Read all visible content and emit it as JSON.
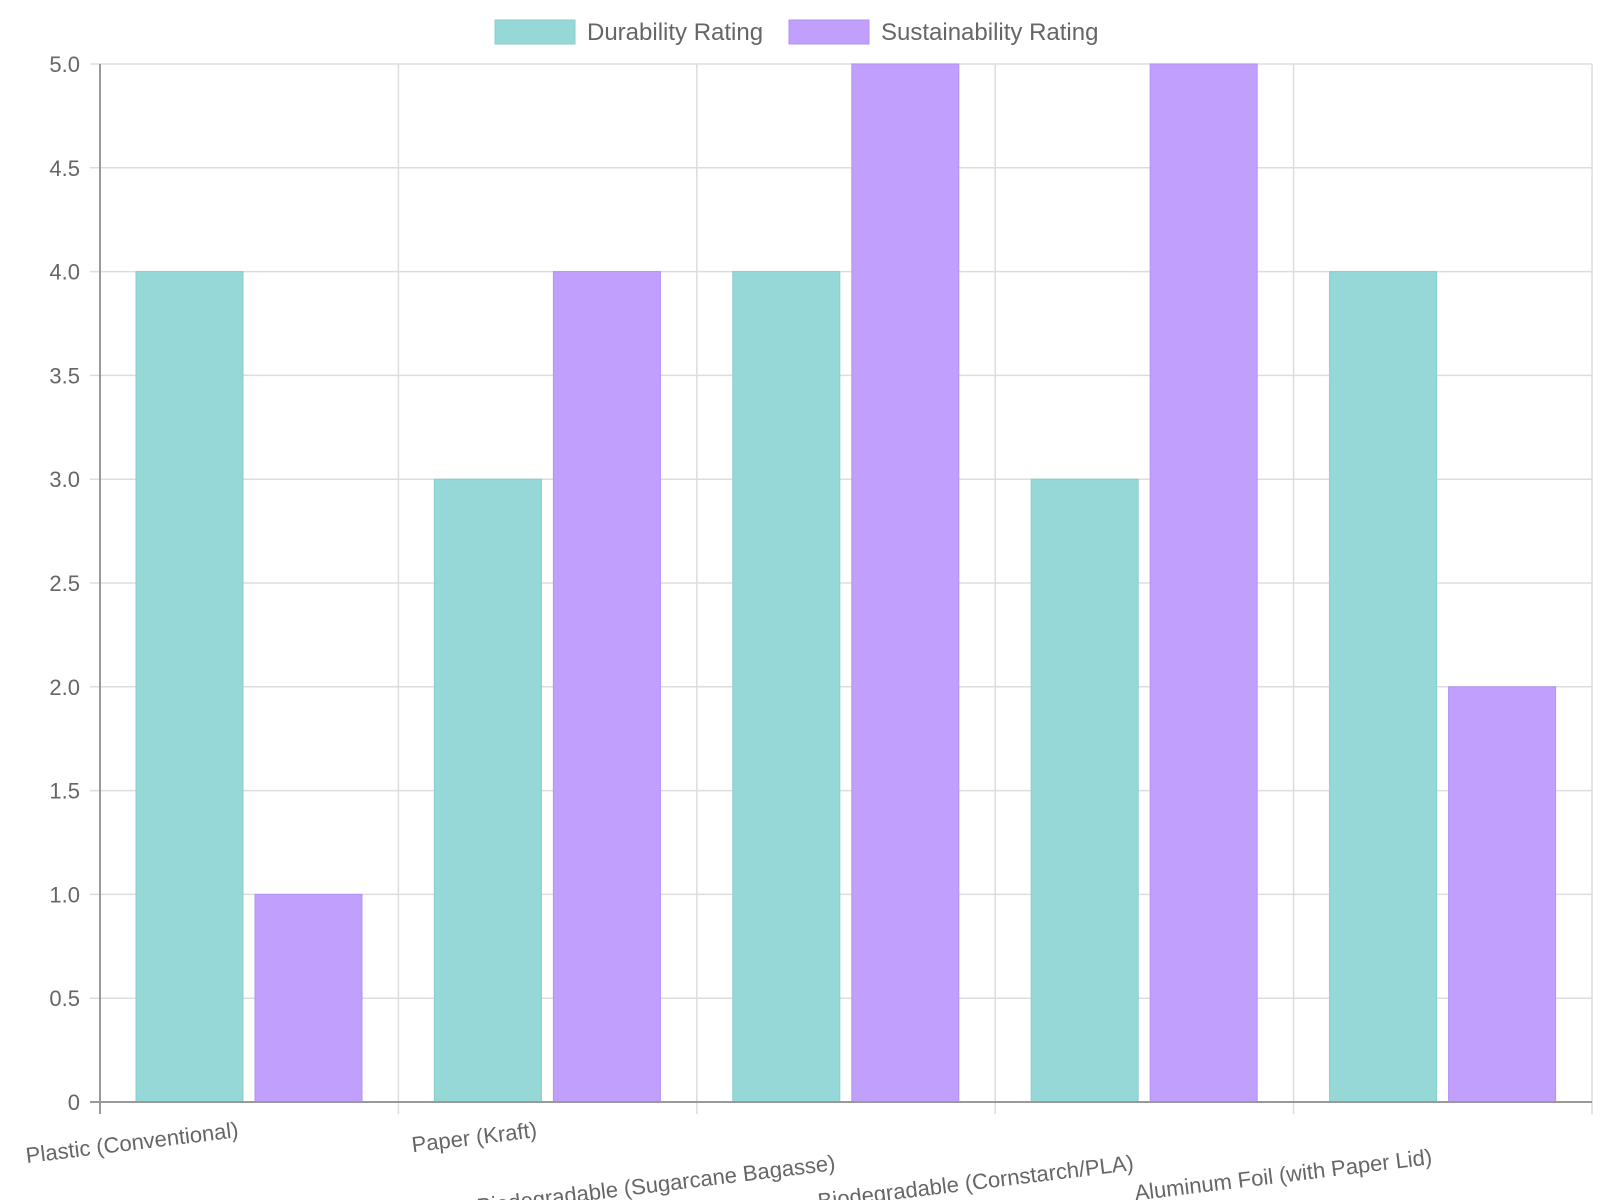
{
  "chart_data": {
    "type": "bar",
    "title": "",
    "xlabel": "",
    "ylabel": "",
    "categories": [
      "Plastic (Conventional)",
      "Paper (Kraft)",
      "Biodegradable (Sugarcane Bagasse)",
      "Biodegradable (Cornstarch/PLA)",
      "Aluminum Foil (with Paper Lid)"
    ],
    "series": [
      {
        "name": "Durability Rating",
        "values": [
          4,
          3,
          4,
          3,
          4
        ],
        "color": "#96d8d8",
        "border": "#88cccc"
      },
      {
        "name": "Sustainability Rating",
        "values": [
          1,
          4,
          5,
          5,
          2
        ],
        "color": "#c0a0fc",
        "border": "#b390f5"
      }
    ],
    "ylim": [
      0,
      5
    ],
    "yticks": [
      "0",
      "0.5",
      "1.0",
      "1.5",
      "2.0",
      "2.5",
      "3.0",
      "3.5",
      "4.0",
      "4.5",
      "5.0"
    ],
    "grid": true,
    "legend_position": "top-center"
  }
}
